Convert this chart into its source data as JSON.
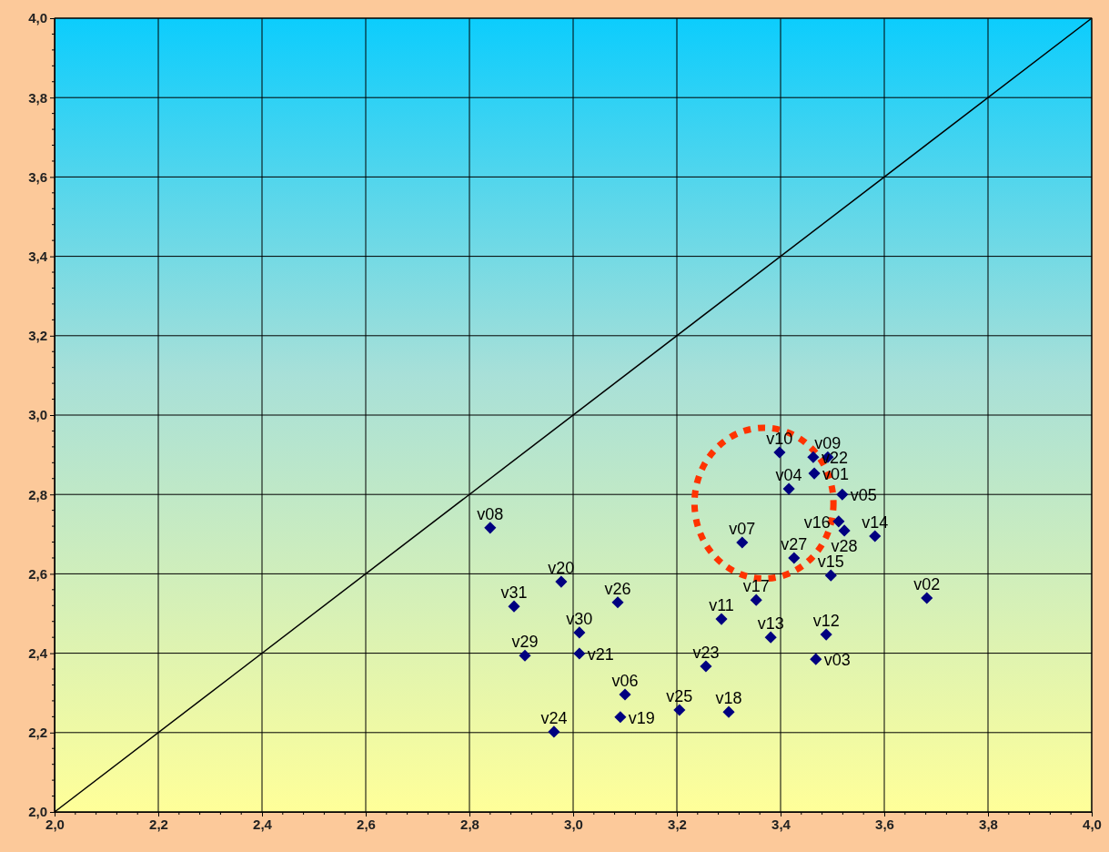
{
  "chart_data": {
    "type": "scatter",
    "marker": "diamond",
    "grid": true,
    "legend": false,
    "xlim": [
      2,
      4
    ],
    "ylim": [
      2,
      4
    ],
    "xticks": [
      {
        "value": 2,
        "label": "2,0"
      },
      {
        "value": 2.2,
        "label": "2,2"
      },
      {
        "value": 2.4,
        "label": "2,4"
      },
      {
        "value": 2.6,
        "label": "2,6"
      },
      {
        "value": 2.8,
        "label": "2,8"
      },
      {
        "value": 3,
        "label": "3,0"
      },
      {
        "value": 3.2,
        "label": "3,2"
      },
      {
        "value": 3.4,
        "label": "3,4"
      },
      {
        "value": 3.6,
        "label": "3,6"
      },
      {
        "value": 3.8,
        "label": "3,8"
      },
      {
        "value": 4,
        "label": "4,0"
      }
    ],
    "yticks": [
      {
        "value": 2,
        "label": "2,0"
      },
      {
        "value": 2.2,
        "label": "2,2"
      },
      {
        "value": 2.4,
        "label": "2,4"
      },
      {
        "value": 2.6,
        "label": "2,6"
      },
      {
        "value": 2.8,
        "label": "2,8"
      },
      {
        "value": 3,
        "label": "3,0"
      },
      {
        "value": 3.2,
        "label": "3,2"
      },
      {
        "value": 3.4,
        "label": "3,4"
      },
      {
        "value": 3.6,
        "label": "3,6"
      },
      {
        "value": 3.8,
        "label": "3,8"
      },
      {
        "value": 4,
        "label": "4,0"
      }
    ],
    "series": [
      {
        "type": "line",
        "marker": "none",
        "color": "#000000",
        "x": [
          2,
          4
        ],
        "values": [
          2,
          4
        ]
      },
      {
        "name": "v01",
        "color": "#000080",
        "x": [
          3.465
        ],
        "values": [
          2.853
        ]
      },
      {
        "name": "v02",
        "color": "#000080",
        "x": [
          3.682
        ],
        "values": [
          2.539
        ]
      },
      {
        "name": "v03",
        "color": "#000080",
        "x": [
          3.468
        ],
        "values": [
          2.385
        ]
      },
      {
        "name": "v04",
        "color": "#000080",
        "x": [
          3.416
        ],
        "values": [
          2.814
        ]
      },
      {
        "name": "v05",
        "color": "#000080",
        "x": [
          3.519
        ],
        "values": [
          2.8
        ]
      },
      {
        "name": "v06",
        "color": "#000080",
        "x": [
          3.1
        ],
        "values": [
          2.296
        ]
      },
      {
        "name": "v07",
        "color": "#000080",
        "x": [
          3.326
        ],
        "values": [
          2.679
        ]
      },
      {
        "name": "v08",
        "color": "#000080",
        "x": [
          2.84
        ],
        "values": [
          2.716
        ]
      },
      {
        "name": "v09",
        "color": "#000080",
        "x": [
          3.491
        ],
        "values": [
          2.894
        ]
      },
      {
        "name": "v10",
        "color": "#000080",
        "x": [
          3.398
        ],
        "values": [
          2.906
        ]
      },
      {
        "name": "v11",
        "color": "#000080",
        "x": [
          3.286
        ],
        "values": [
          2.486
        ]
      },
      {
        "name": "v12",
        "color": "#000080",
        "x": [
          3.488
        ],
        "values": [
          2.447
        ]
      },
      {
        "name": "v13",
        "color": "#000080",
        "x": [
          3.381
        ],
        "values": [
          2.44
        ]
      },
      {
        "name": "v14",
        "color": "#000080",
        "x": [
          3.582
        ],
        "values": [
          2.695
        ]
      },
      {
        "name": "v15",
        "color": "#000080",
        "x": [
          3.497
        ],
        "values": [
          2.596
        ]
      },
      {
        "name": "v16",
        "color": "#000080",
        "x": [
          3.512
        ],
        "values": [
          2.732
        ]
      },
      {
        "name": "v17",
        "color": "#000080",
        "x": [
          3.353
        ],
        "values": [
          2.534
        ]
      },
      {
        "name": "v18",
        "color": "#000080",
        "x": [
          3.3
        ],
        "values": [
          2.252
        ]
      },
      {
        "name": "v19",
        "color": "#000080",
        "x": [
          3.091
        ],
        "values": [
          2.239
        ]
      },
      {
        "name": "v20",
        "color": "#000080",
        "x": [
          2.977
        ],
        "values": [
          2.58
        ]
      },
      {
        "name": "v21",
        "color": "#000080",
        "x": [
          3.012
        ],
        "values": [
          2.399
        ]
      },
      {
        "name": "v22",
        "color": "#000080",
        "x": [
          3.463
        ],
        "values": [
          2.894
        ]
      },
      {
        "name": "v23",
        "color": "#000080",
        "x": [
          3.256
        ],
        "values": [
          2.367
        ]
      },
      {
        "name": "v24",
        "color": "#000080",
        "x": [
          2.963
        ],
        "values": [
          2.202
        ]
      },
      {
        "name": "v25",
        "color": "#000080",
        "x": [
          3.205
        ],
        "values": [
          2.257
        ]
      },
      {
        "name": "v26",
        "color": "#000080",
        "x": [
          3.086
        ],
        "values": [
          2.528
        ]
      },
      {
        "name": "v27",
        "color": "#000080",
        "x": [
          3.426
        ],
        "values": [
          2.64
        ]
      },
      {
        "name": "v28",
        "color": "#000080",
        "x": [
          3.523
        ],
        "values": [
          2.709
        ]
      },
      {
        "name": "v29",
        "color": "#000080",
        "x": [
          2.907
        ],
        "values": [
          2.394
        ]
      },
      {
        "name": "v30",
        "color": "#000080",
        "x": [
          3.012
        ],
        "values": [
          2.452
        ]
      },
      {
        "name": "v31",
        "color": "#000080",
        "x": [
          2.886
        ],
        "values": [
          2.518
        ]
      }
    ]
  }
}
